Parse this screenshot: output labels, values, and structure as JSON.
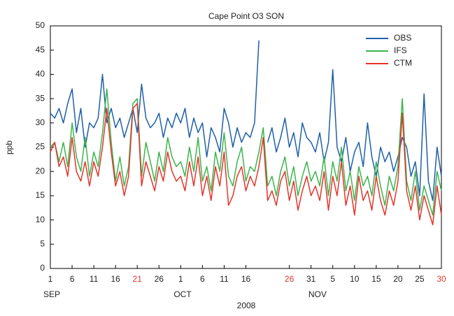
{
  "chart_data": {
    "type": "line",
    "title": "Cape Point O3 SON",
    "ylabel": "ppb",
    "xlabel": "2008",
    "x": [
      "2008-09-01",
      "2008-09-02",
      "2008-09-03",
      "2008-09-04",
      "2008-09-05",
      "2008-09-06",
      "2008-09-07",
      "2008-09-08",
      "2008-09-09",
      "2008-09-10",
      "2008-09-11",
      "2008-09-12",
      "2008-09-13",
      "2008-09-14",
      "2008-09-15",
      "2008-09-16",
      "2008-09-17",
      "2008-09-18",
      "2008-09-19",
      "2008-09-20",
      "2008-09-21",
      "2008-09-22",
      "2008-09-23",
      "2008-09-24",
      "2008-09-25",
      "2008-09-26",
      "2008-09-27",
      "2008-09-28",
      "2008-09-29",
      "2008-09-30",
      "2008-10-01",
      "2008-10-02",
      "2008-10-03",
      "2008-10-04",
      "2008-10-05",
      "2008-10-06",
      "2008-10-07",
      "2008-10-08",
      "2008-10-09",
      "2008-10-10",
      "2008-10-11",
      "2008-10-12",
      "2008-10-13",
      "2008-10-14",
      "2008-10-15",
      "2008-10-16",
      "2008-10-17",
      "2008-10-18",
      "2008-10-19",
      "2008-10-20",
      "2008-10-21",
      "2008-10-22",
      "2008-10-23",
      "2008-10-24",
      "2008-10-25",
      "2008-10-26",
      "2008-10-27",
      "2008-10-28",
      "2008-10-29",
      "2008-10-30",
      "2008-10-31",
      "2008-11-01",
      "2008-11-02",
      "2008-11-03",
      "2008-11-04",
      "2008-11-05",
      "2008-11-06",
      "2008-11-07",
      "2008-11-08",
      "2008-11-09",
      "2008-11-10",
      "2008-11-11",
      "2008-11-12",
      "2008-11-13",
      "2008-11-14",
      "2008-11-15",
      "2008-11-16",
      "2008-11-17",
      "2008-11-18",
      "2008-11-19",
      "2008-11-20",
      "2008-11-21",
      "2008-11-22",
      "2008-11-23",
      "2008-11-24",
      "2008-11-25",
      "2008-11-26",
      "2008-11-27",
      "2008-11-28",
      "2008-11-29",
      "2008-11-30"
    ],
    "series": [
      {
        "name": "OBS",
        "color": "#1f5fa8",
        "values": [
          32,
          31,
          33,
          30,
          34,
          37,
          28,
          33,
          25,
          30,
          29,
          31,
          40,
          30,
          33,
          29,
          31,
          27,
          30,
          33,
          28,
          38,
          31,
          29,
          30,
          32,
          27,
          31,
          29,
          32,
          30,
          33,
          27,
          31,
          28,
          30,
          23,
          29,
          27,
          24,
          33,
          30,
          25,
          29,
          26,
          28,
          27,
          30,
          47,
          null,
          26,
          29,
          24,
          27,
          31,
          25,
          28,
          23,
          30,
          27,
          26,
          24,
          28,
          22,
          26,
          41,
          25,
          22,
          27,
          20,
          24,
          26,
          21,
          30,
          23,
          19,
          25,
          22,
          24,
          20,
          23,
          27,
          25,
          19,
          22,
          15,
          36,
          18,
          14,
          25,
          19
        ]
      },
      {
        "name": "IFS",
        "color": "#3cb44b",
        "values": [
          25,
          26,
          22,
          26,
          21,
          30,
          23,
          20,
          27,
          19,
          24,
          21,
          28,
          37,
          26,
          18,
          23,
          17,
          21,
          34,
          35,
          19,
          26,
          22,
          18,
          24,
          20,
          27,
          23,
          21,
          22,
          19,
          25,
          20,
          27,
          18,
          21,
          16,
          24,
          20,
          28,
          19,
          17,
          22,
          25,
          18,
          21,
          20,
          24,
          29,
          17,
          19,
          15,
          20,
          23,
          17,
          21,
          15,
          19,
          22,
          18,
          20,
          17,
          23,
          15,
          22,
          18,
          25,
          16,
          20,
          14,
          21,
          17,
          19,
          15,
          22,
          17,
          13,
          19,
          16,
          21,
          35,
          18,
          14,
          20,
          12,
          17,
          14,
          11,
          20,
          16
        ]
      },
      {
        "name": "CTM",
        "color": "#e3352b",
        "values": [
          24,
          26,
          21,
          23,
          19,
          27,
          20,
          18,
          22,
          17,
          22,
          19,
          25,
          33,
          24,
          17,
          20,
          15,
          19,
          33,
          34,
          17,
          22,
          19,
          16,
          21,
          18,
          24,
          20,
          18,
          19,
          16,
          22,
          17,
          23,
          15,
          19,
          14,
          21,
          17,
          24,
          13,
          15,
          19,
          21,
          16,
          19,
          17,
          21,
          27,
          14,
          16,
          13,
          18,
          20,
          14,
          18,
          12,
          16,
          19,
          15,
          17,
          14,
          20,
          12,
          19,
          15,
          22,
          13,
          17,
          11,
          19,
          14,
          16,
          12,
          19,
          14,
          11,
          16,
          13,
          18,
          32,
          16,
          12,
          17,
          10,
          15,
          12,
          9,
          17,
          11
        ]
      }
    ],
    "xlim": [
      "2008-09-01",
      "2008-11-30"
    ],
    "xticks": [
      {
        "value": "2008-09-01",
        "label": "1"
      },
      {
        "value": "2008-09-06",
        "label": "6"
      },
      {
        "value": "2008-09-11",
        "label": "11"
      },
      {
        "value": "2008-09-16",
        "label": "16"
      },
      {
        "value": "2008-09-21",
        "label": "21",
        "color": "#e3352b"
      },
      {
        "value": "2008-09-26",
        "label": "26"
      },
      {
        "value": "2008-10-01",
        "label": "1"
      },
      {
        "value": "2008-10-06",
        "label": "6"
      },
      {
        "value": "2008-10-11",
        "label": "11"
      },
      {
        "value": "2008-10-16",
        "label": "16"
      },
      {
        "value": "2008-10-26",
        "label": "26",
        "color": "#e3352b"
      },
      {
        "value": "2008-10-31",
        "label": "31"
      },
      {
        "value": "2008-11-05",
        "label": "5"
      },
      {
        "value": "2008-11-10",
        "label": "10"
      },
      {
        "value": "2008-11-15",
        "label": "15"
      },
      {
        "value": "2008-11-20",
        "label": "20"
      },
      {
        "value": "2008-11-25",
        "label": "25"
      },
      {
        "value": "2008-11-30",
        "label": "30",
        "color": "#e3352b"
      }
    ],
    "month_labels": [
      {
        "value": "2008-09-01",
        "label": "SEP"
      },
      {
        "value": "2008-10-01",
        "label": "OCT"
      },
      {
        "value": "2008-11-01",
        "label": "NOV"
      }
    ],
    "ylim": [
      0,
      50
    ],
    "yticks": [
      0,
      5,
      10,
      15,
      20,
      25,
      30,
      35,
      40,
      45,
      50
    ],
    "legend": "upper right"
  }
}
